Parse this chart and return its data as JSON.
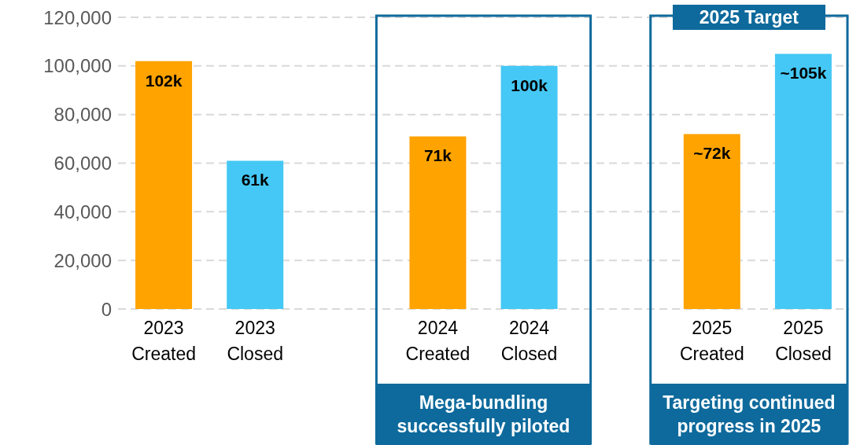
{
  "chart_data": {
    "type": "bar",
    "categories": [
      "2023 Created",
      "2023 Closed",
      null,
      "2024 Created",
      "2024 Closed",
      null,
      "2025 Created",
      "2025 Closed"
    ],
    "values": [
      102000,
      61000,
      null,
      71000,
      100000,
      null,
      72000,
      105000
    ],
    "colors": [
      "#ffa300",
      "#45c8f5",
      null,
      "#ffa300",
      "#45c8f5",
      null,
      "#ffa300",
      "#45c8f5"
    ],
    "value_labels": [
      "102k",
      "61k",
      null,
      "71k",
      "100k",
      null,
      "~72k",
      "~105k"
    ],
    "ylim": [
      0,
      120000
    ],
    "yticks": [
      0,
      {
        "value": 20000,
        "label": "20,000"
      },
      {
        "value": 40000,
        "label": "40,000"
      },
      {
        "value": 60000,
        "label": "60,000"
      },
      {
        "value": 80000,
        "label": "80,000"
      },
      {
        "value": 100000,
        "label": "100,000"
      },
      {
        "value": 120000,
        "label": "120,000"
      }
    ],
    "grid": "y",
    "legend": false,
    "annotations": [
      "Mega-bundling successfully piloted",
      "Targeting continued progress in 2025",
      "2025 Target"
    ]
  }
}
